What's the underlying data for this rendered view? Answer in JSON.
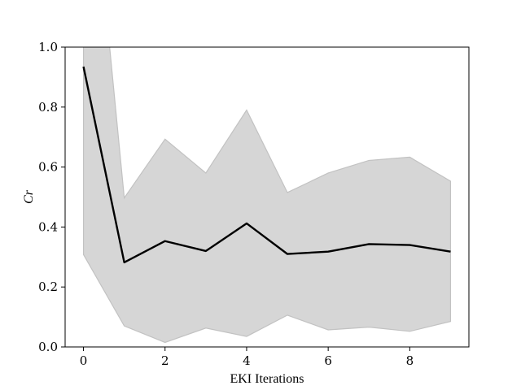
{
  "chart_data": {
    "type": "area",
    "title": "",
    "xlabel": "EKI Iterations",
    "ylabel": "Cr",
    "xlim": [
      -0.45,
      9.45
    ],
    "ylim": [
      0.0,
      1.0
    ],
    "x_ticks": [
      0,
      2,
      4,
      6,
      8
    ],
    "y_ticks": [
      "0.0",
      "0.2",
      "0.4",
      "0.6",
      "0.8",
      "1.0"
    ],
    "grid": false,
    "legend": "none",
    "x": [
      0,
      1,
      2,
      3,
      4,
      5,
      6,
      7,
      8,
      9
    ],
    "series": [
      {
        "type": "line",
        "color": "#000000",
        "values": [
          0.935,
          0.282,
          0.353,
          0.32,
          0.412,
          0.31,
          0.318,
          0.343,
          0.34,
          0.318
        ]
      },
      {
        "type": "band",
        "color": "#d6d6d6",
        "edge_color": "#c2c2c2",
        "lower": [
          0.308,
          0.07,
          0.015,
          0.063,
          0.035,
          0.106,
          0.057,
          0.066,
          0.052,
          0.085
        ],
        "upper": [
          1.9,
          0.497,
          0.693,
          0.58,
          0.79,
          0.515,
          0.58,
          0.622,
          0.633,
          0.553
        ]
      }
    ]
  }
}
